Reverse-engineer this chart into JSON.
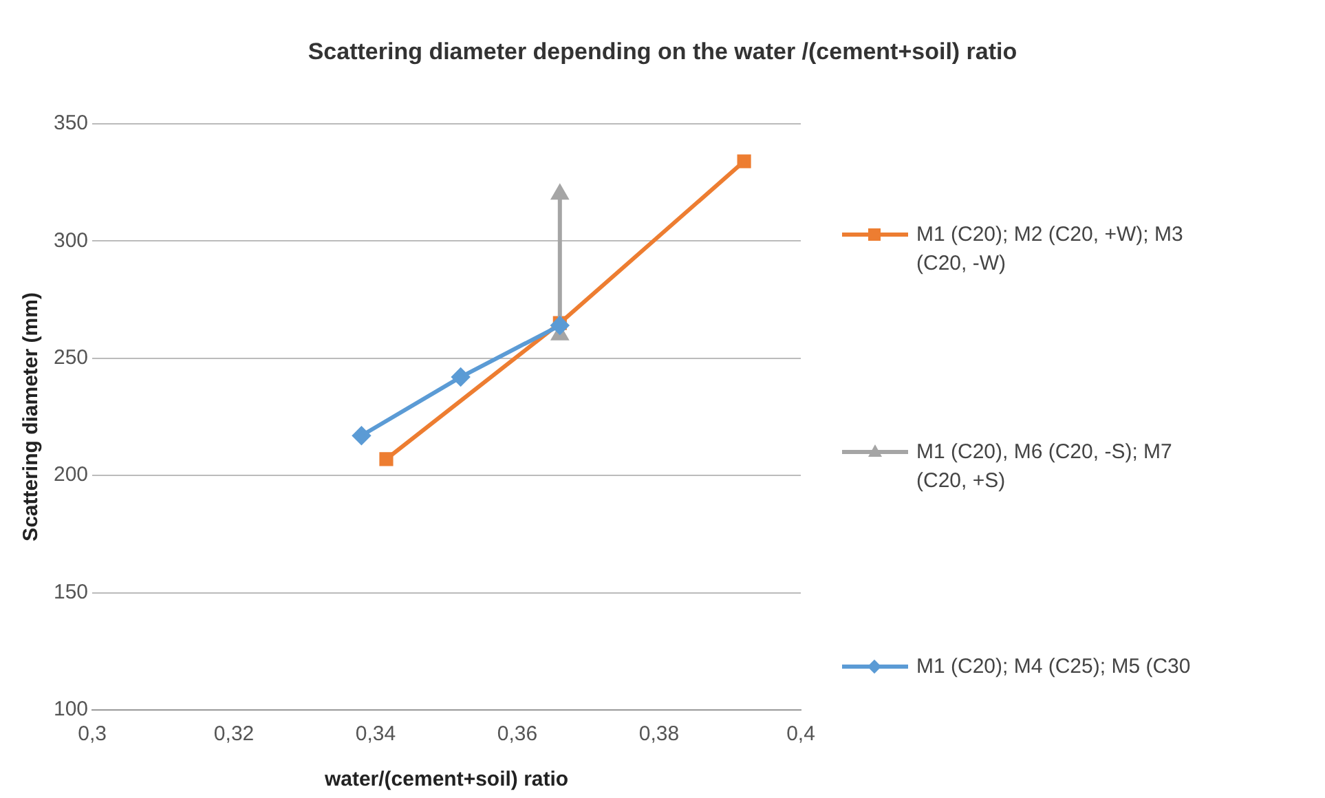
{
  "chart_data": {
    "type": "line",
    "title": "Scattering diameter depending on the water /(cement+soil) ratio",
    "xlabel": "water/(cement+soil) ratio",
    "ylabel": "Scattering diameter (mm)",
    "xlim": [
      0.3,
      0.4
    ],
    "xticks": [
      {
        "value": 0.3,
        "label": "0,3"
      },
      {
        "value": 0.32,
        "label": "0,32"
      },
      {
        "value": 0.34,
        "label": "0,34"
      },
      {
        "value": 0.36,
        "label": "0,36"
      },
      {
        "value": 0.38,
        "label": "0,38"
      },
      {
        "value": 0.4,
        "label": "0,4"
      }
    ],
    "ylim": [
      100,
      350
    ],
    "yticks": [
      100,
      150,
      200,
      250,
      300,
      350
    ],
    "grid": "y",
    "legend": "right",
    "series": [
      {
        "name": "M1 (C20); M2 (C20, +W); M3 (C20, -W)",
        "color": "#ed7d31",
        "marker": "square",
        "x": [
          0.3415,
          0.366,
          0.392
        ],
        "values": [
          207,
          265,
          334
        ]
      },
      {
        "name": "M1 (C20), M6 (C20, -S); M7 (C20, +S)",
        "color": "#a5a5a5",
        "marker": "triangle",
        "x": [
          0.366,
          0.366
        ],
        "values": [
          320,
          260
        ]
      },
      {
        "name": "M1 (C20); M4 (C25); M5 (C30",
        "color": "#5b9bd5",
        "marker": "diamond",
        "x": [
          0.338,
          0.352,
          0.366
        ],
        "values": [
          217,
          242,
          264
        ]
      }
    ]
  }
}
